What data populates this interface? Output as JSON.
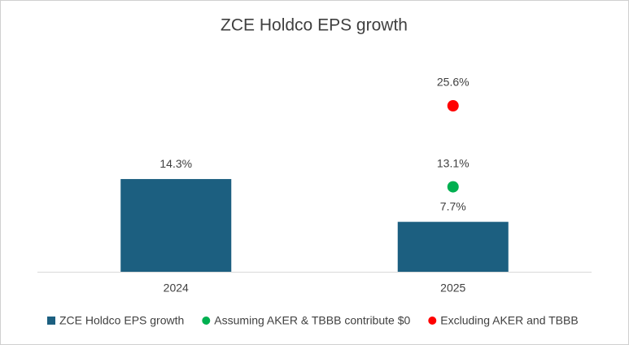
{
  "chart_data": {
    "type": "bar",
    "title": "ZCE Holdco EPS growth",
    "categories": [
      "2024",
      "2025"
    ],
    "series": [
      {
        "name": "ZCE Holdco EPS growth",
        "type": "bar",
        "color": "#1c5f80",
        "values": [
          14.3,
          7.7
        ],
        "value_labels": [
          "14.3%",
          "7.7%"
        ]
      },
      {
        "name": "Assuming AKER & TBBB contribute $0",
        "type": "scatter",
        "color": "#00b050",
        "values": [
          null,
          13.1
        ],
        "value_labels": [
          null,
          "13.1%"
        ]
      },
      {
        "name": "Excluding AKER and TBBB",
        "type": "scatter",
        "color": "#ff0000",
        "values": [
          null,
          25.6
        ],
        "value_labels": [
          null,
          "25.6%"
        ]
      }
    ],
    "legend": "bottom"
  }
}
